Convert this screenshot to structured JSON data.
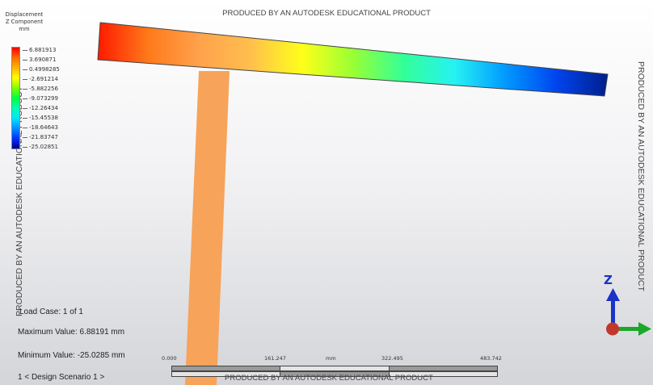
{
  "legend": {
    "title": [
      "Displacement",
      "Z Component",
      "mm"
    ],
    "values": [
      "6.881913",
      "3.690871",
      "0.4998285",
      "-2.691214",
      "-5.882256",
      "-9.073299",
      "-12.26434",
      "-15.45538",
      "-18.64643",
      "-21.83747",
      "-25.02851"
    ],
    "gradient": [
      "#ff0000",
      "#ff6a00",
      "#ffb400",
      "#ffff00",
      "#7fff00",
      "#00ff40",
      "#00ffb0",
      "#00e5ff",
      "#0090ff",
      "#0030ff",
      "#00008c"
    ]
  },
  "watermarks": {
    "top": "PRODUCED BY AN AUTODESK EDUCATIONAL PRODUCT",
    "left": "PRODUCED BY AN AUTODESK EDUCATIONAL PRODUCT",
    "right": "PRODUCED BY AN AUTODESK EDUCATIONAL PRODUCT",
    "bottom": "PRODUCED BY AN AUTODESK EDUCATIONAL PRODUCT"
  },
  "info": {
    "load_case": "Load Case:  1 of 1",
    "max_value": "Maximum Value: 6.88191 mm",
    "min_value": "Minimum Value: -25.0285 mm",
    "scenario": "1 < Design Scenario 1 >"
  },
  "scale": {
    "labels": [
      "0.000",
      "161.247",
      "322.495",
      "483.742"
    ],
    "unit": "mm"
  },
  "triad": {
    "z_label": "Z",
    "colors": {
      "z": "#1a33c8",
      "x": "#1aa82a",
      "origin": "#c0392b"
    }
  },
  "model": {
    "column_color": "#f7a35a",
    "beam_gradient": [
      "#ff1a00",
      "#ff7a1a",
      "#ffa24d",
      "#ffbf4d",
      "#ffff1a",
      "#99ff33",
      "#33ff99",
      "#26f2f2",
      "#0099ff",
      "#0044ee",
      "#001e8c"
    ]
  }
}
